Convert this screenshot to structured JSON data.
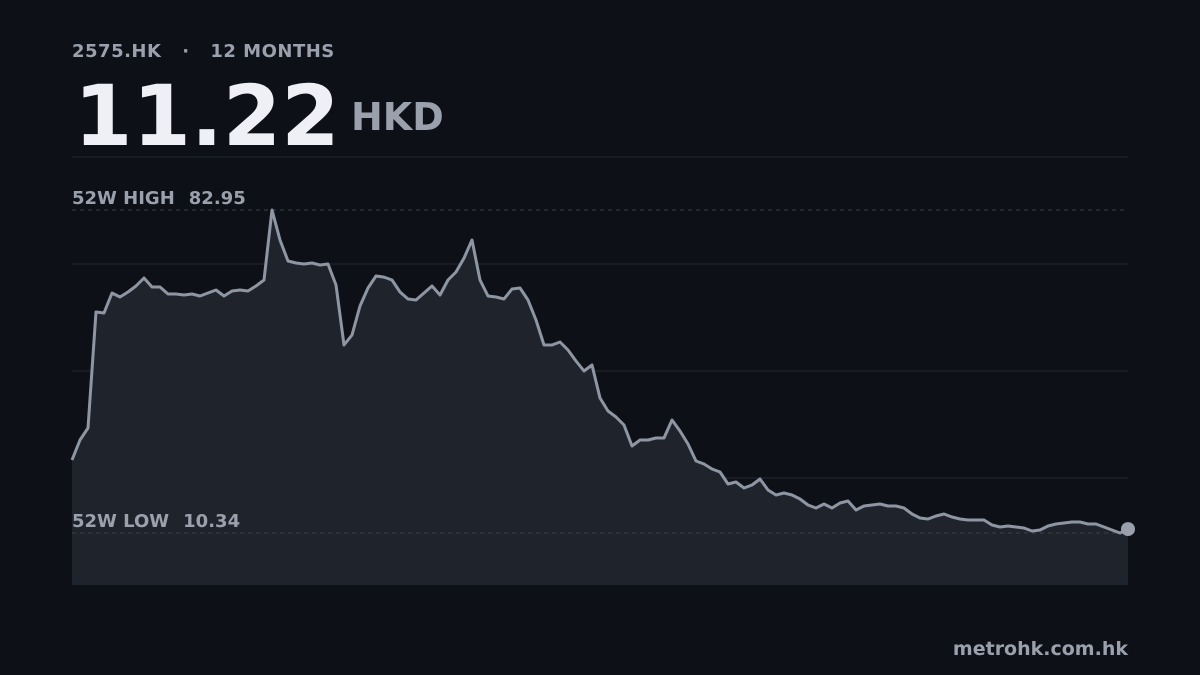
{
  "header": {
    "ticker": "2575.HK",
    "separator": "·",
    "period": "12 MONTHS",
    "price": 11.22,
    "currency": "HKD"
  },
  "chart_data": {
    "type": "area",
    "color": "#8e96a3",
    "fill": "#1f232b",
    "grid": true,
    "ylim": [
      -1.35,
      94.87
    ],
    "yticks": [
      22.71,
      46.76,
      70.82
    ],
    "high": {
      "label": "52W HIGH",
      "value": 82.95
    },
    "low": {
      "label": "52W LOW",
      "value": 10.34
    },
    "values": [
      26.75,
      31.24,
      33.94,
      60.02,
      59.8,
      64.29,
      63.4,
      64.52,
      65.87,
      67.66,
      65.64,
      65.64,
      64.07,
      64.07,
      63.84,
      64.07,
      63.62,
      64.29,
      64.97,
      63.62,
      64.74,
      64.97,
      64.74,
      65.87,
      67.21,
      82.95,
      76.2,
      71.48,
      71.03,
      70.81,
      71.03,
      70.58,
      70.81,
      66.09,
      52.6,
      54.85,
      61.37,
      65.41,
      68.11,
      67.88,
      67.21,
      64.52,
      62.95,
      62.72,
      64.29,
      65.87,
      63.84,
      67.21,
      69.01,
      72.15,
      76.2,
      67.21,
      63.62,
      63.4,
      62.95,
      65.19,
      65.41,
      62.72,
      58.22,
      52.6,
      52.6,
      53.28,
      51.48,
      49.01,
      46.76,
      48.11,
      40.69,
      37.76,
      36.42,
      34.62,
      29.9,
      31.24,
      31.24,
      31.7,
      31.7,
      35.74,
      33.27,
      30.35,
      26.53,
      25.85,
      24.73,
      24.05,
      21.35,
      21.81,
      20.46,
      21.13,
      22.48,
      20.01,
      18.88,
      19.33,
      18.88,
      17.98,
      16.64,
      15.96,
      16.86,
      15.96,
      17.09,
      17.53,
      15.51,
      16.41,
      16.64,
      16.86,
      16.41,
      16.41,
      15.96,
      14.61,
      13.71,
      13.49,
      14.16,
      14.61,
      13.94,
      13.49,
      13.26,
      13.26,
      13.26,
      12.14,
      11.69,
      11.91,
      11.69,
      11.46,
      10.79,
      11.01,
      11.91,
      12.36,
      12.59,
      12.81,
      12.81,
      12.36,
      12.36,
      11.69,
      11.01,
      10.34,
      11.22
    ]
  },
  "footer": {
    "source": "metrohk.com.hk"
  }
}
